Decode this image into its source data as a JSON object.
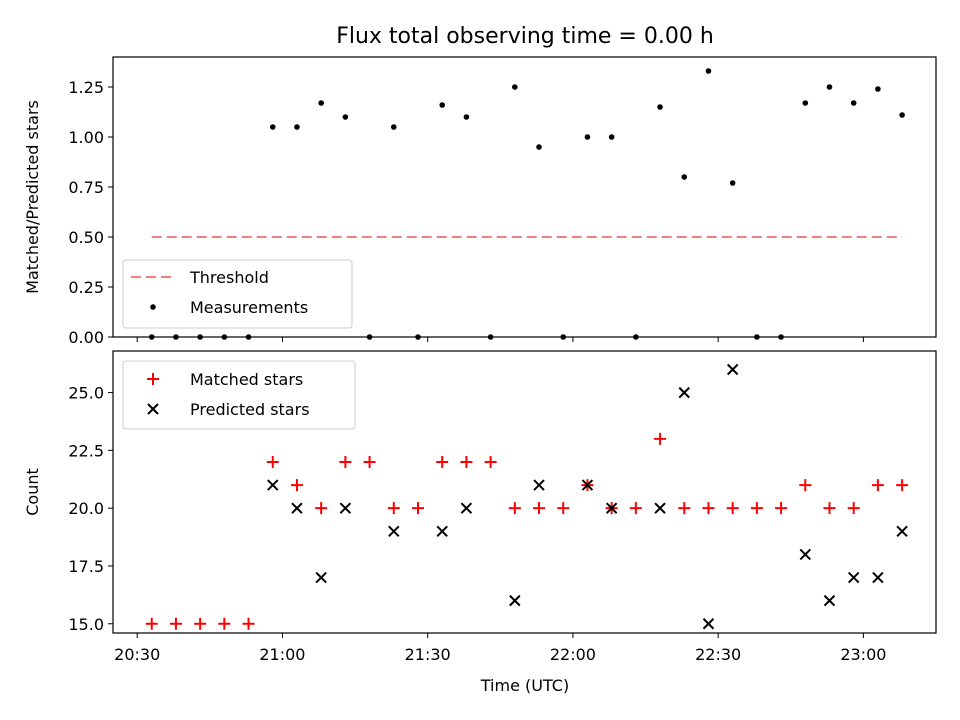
{
  "chart_data": [
    {
      "type": "scatter",
      "title": "Flux total observing time = 0.00 h",
      "ylabel": "Matched/Predicted stars",
      "ylim": [
        0,
        1.4
      ],
      "yticks": [
        "0.00",
        "0.25",
        "0.50",
        "0.75",
        "1.00",
        "1.25"
      ],
      "legend_position": "lower-left",
      "threshold": {
        "name": "Threshold",
        "value": 0.5,
        "x_start": "20:33",
        "x_end": "23:08",
        "color": "#f08080"
      },
      "series": [
        {
          "name": "Measurements",
          "color": "#000000",
          "x": [
            "20:33",
            "20:38",
            "20:43",
            "20:48",
            "20:53",
            "20:58",
            "21:03",
            "21:08",
            "21:13",
            "21:18",
            "21:23",
            "21:28",
            "21:33",
            "21:38",
            "21:43",
            "21:48",
            "21:53",
            "21:58",
            "22:03",
            "22:08",
            "22:13",
            "22:18",
            "22:23",
            "22:28",
            "22:33",
            "22:38",
            "22:43",
            "22:48",
            "22:53",
            "22:58",
            "23:03",
            "23:08"
          ],
          "y": [
            0,
            0,
            0,
            0,
            0,
            1.05,
            1.05,
            1.17,
            1.1,
            0,
            1.05,
            0,
            1.16,
            1.1,
            0,
            1.25,
            0.95,
            0,
            1.0,
            1.0,
            0,
            1.15,
            0.8,
            1.33,
            0.77,
            0,
            0,
            1.17,
            1.25,
            1.17,
            1.24,
            1.11
          ]
        }
      ]
    },
    {
      "type": "scatter",
      "xlabel": "Time (UTC)",
      "ylabel": "Count",
      "ylim": [
        14.6,
        26.8
      ],
      "yticks": [
        "15.0",
        "17.5",
        "20.0",
        "22.5",
        "25.0"
      ],
      "xticks": [
        "20:30",
        "21:00",
        "21:30",
        "22:00",
        "22:30",
        "23:00"
      ],
      "xlim": [
        "20:25",
        "23:15"
      ],
      "legend_position": "upper-left",
      "series": [
        {
          "name": "Matched stars",
          "color": "#ff0000",
          "marker": "plus",
          "x": [
            "20:33",
            "20:38",
            "20:43",
            "20:48",
            "20:53",
            "20:58",
            "21:03",
            "21:08",
            "21:13",
            "21:18",
            "21:23",
            "21:28",
            "21:33",
            "21:38",
            "21:43",
            "21:48",
            "21:53",
            "21:58",
            "22:03",
            "22:08",
            "22:13",
            "22:18",
            "22:23",
            "22:28",
            "22:33",
            "22:38",
            "22:43",
            "22:48",
            "22:53",
            "22:58",
            "23:03",
            "23:08"
          ],
          "y": [
            15,
            15,
            15,
            15,
            15,
            22,
            21,
            20,
            22,
            22,
            20,
            20,
            22,
            22,
            22,
            20,
            20,
            20,
            21,
            20,
            20,
            23,
            20,
            20,
            20,
            20,
            20,
            21,
            20,
            20,
            21,
            21
          ]
        },
        {
          "name": "Predicted stars",
          "color": "#000000",
          "marker": "x",
          "x": [
            "20:58",
            "21:03",
            "21:08",
            "21:13",
            "21:23",
            "21:33",
            "21:38",
            "21:48",
            "21:53",
            "22:03",
            "22:08",
            "22:18",
            "22:23",
            "22:28",
            "22:33",
            "22:48",
            "22:53",
            "22:58",
            "23:03",
            "23:08"
          ],
          "y": [
            21,
            20,
            17,
            20,
            19,
            19,
            20,
            16,
            21,
            21,
            20,
            20,
            25,
            15,
            26,
            18,
            16,
            17,
            17,
            19
          ]
        }
      ]
    }
  ]
}
